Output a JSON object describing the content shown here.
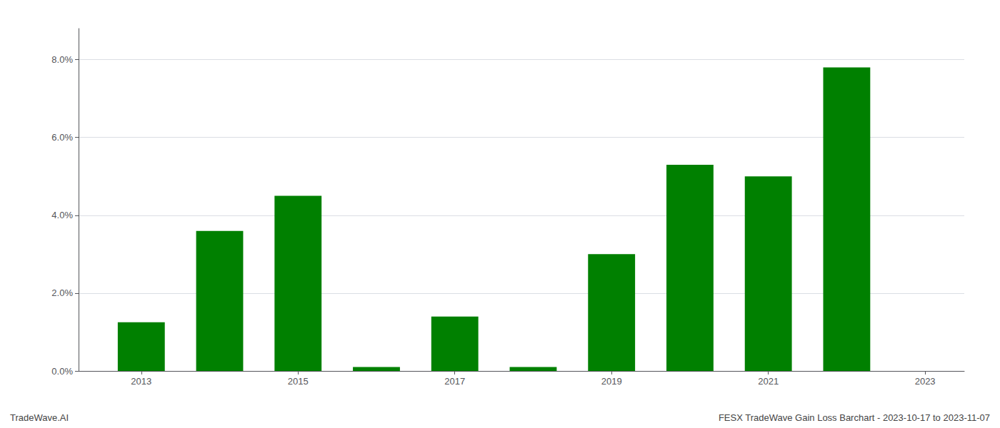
{
  "chart_data": {
    "type": "bar",
    "x": [
      2013,
      2014,
      2015,
      2016,
      2017,
      2018,
      2019,
      2020,
      2021,
      2022
    ],
    "values": [
      0.0125,
      0.036,
      0.045,
      0.001,
      0.014,
      0.001,
      0.03,
      0.053,
      0.05,
      0.078
    ],
    "color": "#008000",
    "xlim": [
      2012.2,
      2023.5
    ],
    "xticks": [
      2013,
      2015,
      2017,
      2019,
      2021,
      2023
    ],
    "ylim": [
      0,
      0.088
    ],
    "yticks": [
      {
        "value": 0.0,
        "label": "0.0%"
      },
      {
        "value": 0.02,
        "label": "2.0%"
      },
      {
        "value": 0.04,
        "label": "4.0%"
      },
      {
        "value": 0.06,
        "label": "6.0%"
      },
      {
        "value": 0.08,
        "label": "8.0%"
      }
    ],
    "grid": true,
    "annotations": [
      "TradeWave.AI",
      "FESX TradeWave Gain Loss Barchart - 2023-10-17 to 2023-11-07"
    ]
  }
}
